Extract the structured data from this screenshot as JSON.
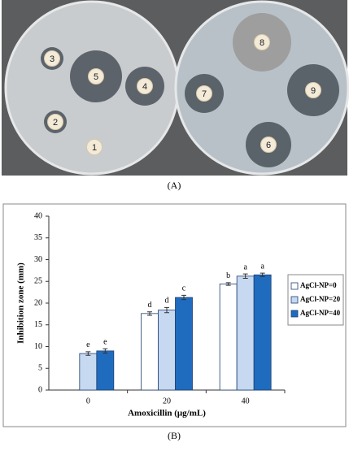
{
  "photo": {
    "discs": [
      "3",
      "5",
      "4",
      "2",
      "1",
      "8",
      "7",
      "9",
      "6"
    ],
    "caption": "(A)"
  },
  "chart_data": {
    "type": "bar",
    "x_label": "Amoxicillin  (μg/mL)",
    "y_label": "Inhibition zone (mm)",
    "categories": [
      "0",
      "20",
      "40"
    ],
    "series": [
      {
        "name": "AgCl-NP=0",
        "color": "#ffffff",
        "values": [
          null,
          17.6,
          24.4
        ],
        "errors": [
          null,
          0.4,
          0.3
        ],
        "letters": [
          null,
          "d",
          "b"
        ]
      },
      {
        "name": "AgCl-NP=20",
        "color": "#c6d9f1",
        "values": [
          8.4,
          18.4,
          26.2
        ],
        "errors": [
          0.4,
          0.6,
          0.5
        ],
        "letters": [
          "e",
          "d",
          "a"
        ]
      },
      {
        "name": "AgCl-NP=40",
        "color": "#1f6cbf",
        "values": [
          9.0,
          21.3,
          26.5
        ],
        "errors": [
          0.5,
          0.5,
          0.4
        ],
        "letters": [
          "e",
          "c",
          "a"
        ]
      }
    ],
    "ylim": [
      0,
      40
    ],
    "yticks": [
      0,
      5,
      10,
      15,
      20,
      25,
      30,
      35,
      40
    ],
    "legend": "right",
    "caption": "(B)"
  }
}
